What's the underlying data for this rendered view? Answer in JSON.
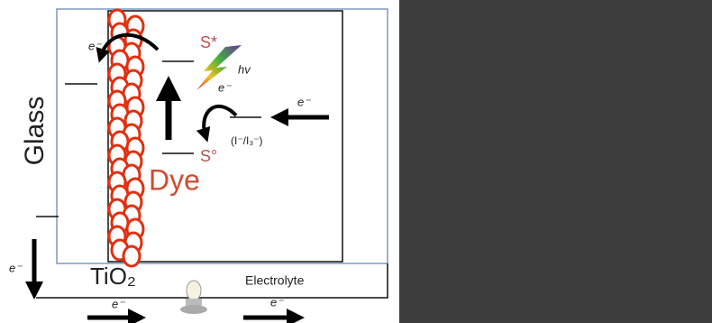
{
  "labels": {
    "glass": "Glass",
    "electron_tio2": "e⁻",
    "excited_state": "S*",
    "photon": "hv",
    "electron_photo": "e⁻",
    "electron_electrolyte": "e⁻",
    "redox": "(I⁻/I₃⁻)",
    "ground_state": "S°",
    "dye": "Dye",
    "electron_circuit_left": "e⁻",
    "tio2": "TiO₂",
    "electrolyte": "Electrolyte",
    "electron_bottom_left": "e⁻",
    "electron_bottom_right": "e⁻"
  }
}
